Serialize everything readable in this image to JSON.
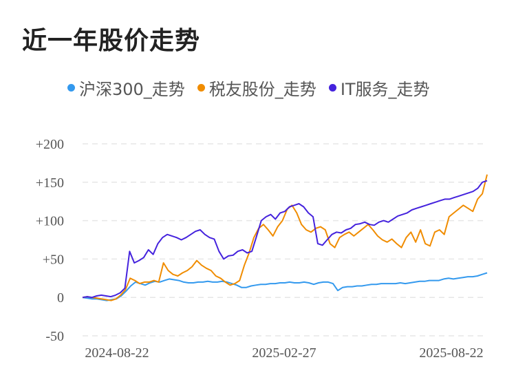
{
  "page_title": "近一年股价走势",
  "colors": {
    "hs300": "#3399ee",
    "company": "#f08c00",
    "it": "#4422dd",
    "grid": "#e6e6e6"
  },
  "chart_data": {
    "type": "line",
    "title": "近一年股价走势",
    "xlabel": "",
    "ylabel": "",
    "ylim": [
      -50,
      200
    ],
    "yticks": [
      200,
      150,
      100,
      50,
      0,
      -50
    ],
    "ytick_labels": [
      "+200",
      "+150",
      "+100",
      "+50",
      "0",
      "-50"
    ],
    "xtick_labels": [
      "2024-08-22",
      "2025-02-27",
      "2025-08-22"
    ],
    "grid": true,
    "legend_position": "top",
    "series": [
      {
        "name": "沪深300_走势",
        "color": "#3399ee",
        "values": [
          0,
          -1,
          -2,
          -2,
          -3,
          -4,
          -3,
          -2,
          2,
          8,
          15,
          20,
          18,
          16,
          19,
          21,
          20,
          22,
          24,
          23,
          22,
          20,
          19,
          19,
          20,
          20,
          21,
          20,
          20,
          21,
          20,
          18,
          16,
          13,
          13,
          15,
          16,
          17,
          17,
          18,
          18,
          19,
          19,
          20,
          19,
          19,
          20,
          19,
          17,
          19,
          20,
          20,
          18,
          9,
          13,
          14,
          14,
          15,
          15,
          16,
          17,
          17,
          18,
          18,
          18,
          18,
          19,
          18,
          19,
          20,
          21,
          21,
          22,
          22,
          22,
          24,
          25,
          24,
          25,
          26,
          27,
          27,
          28,
          30,
          32
        ]
      },
      {
        "name": "税友股份_走势",
        "color": "#f08c00",
        "values": [
          0,
          1,
          0,
          -1,
          -2,
          -3,
          -4,
          -2,
          3,
          10,
          25,
          22,
          18,
          20,
          20,
          22,
          20,
          45,
          35,
          30,
          28,
          32,
          35,
          40,
          48,
          42,
          38,
          35,
          28,
          25,
          20,
          16,
          18,
          22,
          42,
          58,
          78,
          90,
          95,
          88,
          80,
          92,
          100,
          115,
          120,
          110,
          95,
          88,
          85,
          90,
          92,
          88,
          70,
          65,
          78,
          82,
          85,
          80,
          85,
          90,
          95,
          88,
          80,
          75,
          72,
          76,
          70,
          65,
          78,
          85,
          72,
          88,
          70,
          67,
          85,
          88,
          82,
          105,
          110,
          115,
          120,
          116,
          112,
          128,
          135,
          160
        ]
      },
      {
        "name": "IT服务_走势",
        "color": "#4422dd",
        "values": [
          0,
          1,
          0,
          2,
          3,
          2,
          1,
          3,
          6,
          12,
          60,
          45,
          48,
          52,
          62,
          56,
          70,
          78,
          82,
          80,
          78,
          75,
          78,
          82,
          86,
          88,
          82,
          78,
          76,
          60,
          50,
          54,
          55,
          60,
          62,
          58,
          60,
          80,
          100,
          105,
          108,
          102,
          110,
          112,
          118,
          120,
          122,
          118,
          110,
          105,
          70,
          68,
          75,
          82,
          85,
          84,
          88,
          90,
          95,
          96,
          98,
          95,
          94,
          98,
          100,
          98,
          102,
          106,
          108,
          110,
          114,
          116,
          118,
          120,
          122,
          124,
          126,
          128,
          128,
          130,
          132,
          134,
          136,
          138,
          142,
          150,
          152
        ]
      }
    ]
  }
}
